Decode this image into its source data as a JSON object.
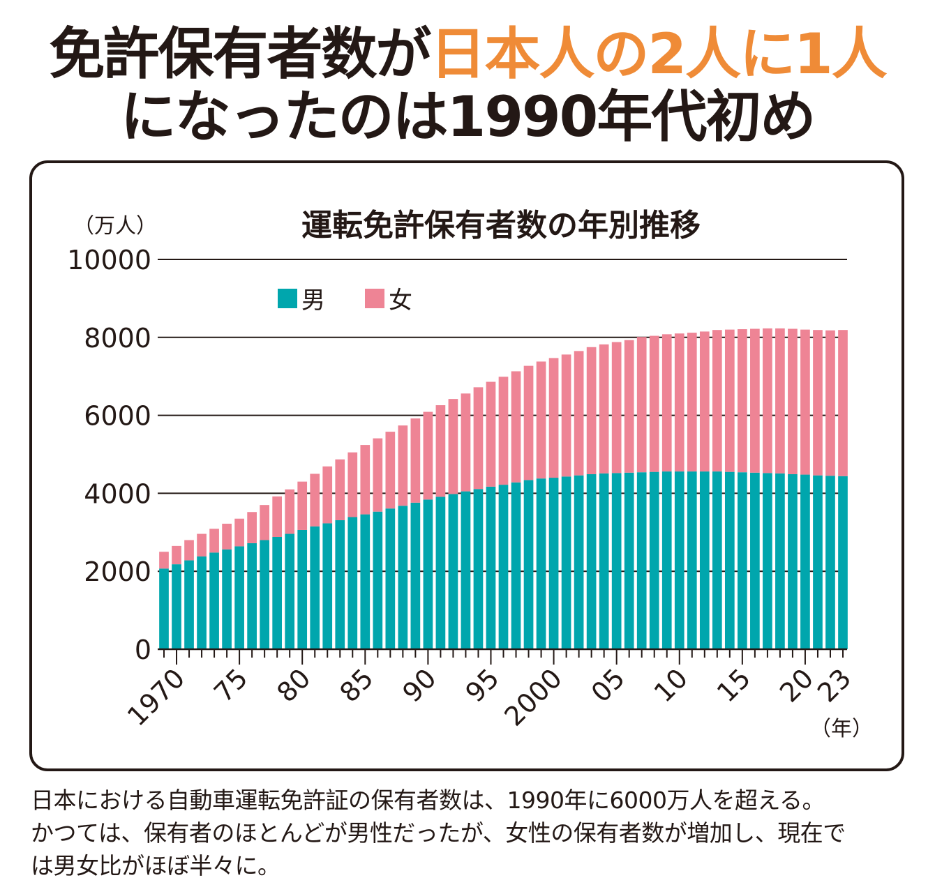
{
  "headline": {
    "line1_plain": "免許保有者数が",
    "line1_accent": "日本人の2人に1人",
    "line2": "になったのは1990年代初め",
    "accent_color": "#ef8b37"
  },
  "caption": {
    "lines": [
      "日本における自動車運転免許証の保有者数は、1990年に6000万人を超える。",
      "かつては、保有者のほとんどが男性だったが、女性の保有者数が増加し、現在で",
      "は男女比がほぼ半々に。"
    ]
  },
  "chart_data": {
    "type": "bar",
    "stacked": true,
    "title": "運転免許保有者数の年別推移",
    "ylabel": "（万人）",
    "xlabel": "（年）",
    "ylim": [
      0,
      10000
    ],
    "yticks": [
      0,
      2000,
      4000,
      6000,
      8000,
      10000
    ],
    "ytick_labels": [
      "0",
      "2000",
      "4000",
      "6000",
      "8000",
      "10000"
    ],
    "grid": true,
    "legend_position": "top-left",
    "x": [
      1969,
      1970,
      1971,
      1972,
      1973,
      1974,
      1975,
      1976,
      1977,
      1978,
      1979,
      1980,
      1981,
      1982,
      1983,
      1984,
      1985,
      1986,
      1987,
      1988,
      1989,
      1990,
      1991,
      1992,
      1993,
      1994,
      1995,
      1996,
      1997,
      1998,
      1999,
      2000,
      2001,
      2002,
      2003,
      2004,
      2005,
      2006,
      2007,
      2008,
      2009,
      2010,
      2011,
      2012,
      2013,
      2014,
      2015,
      2016,
      2017,
      2018,
      2019,
      2020,
      2021,
      2022,
      2023
    ],
    "xtick_labels": [
      {
        "year": 1970,
        "label": "1970"
      },
      {
        "year": 1975,
        "label": "75"
      },
      {
        "year": 1980,
        "label": "80"
      },
      {
        "year": 1985,
        "label": "85"
      },
      {
        "year": 1990,
        "label": "90"
      },
      {
        "year": 1995,
        "label": "95"
      },
      {
        "year": 2000,
        "label": "2000"
      },
      {
        "year": 2005,
        "label": "05"
      },
      {
        "year": 2010,
        "label": "10"
      },
      {
        "year": 2015,
        "label": "15"
      },
      {
        "year": 2020,
        "label": "20"
      },
      {
        "year": 2023,
        "label": "23"
      }
    ],
    "series": [
      {
        "name": "男",
        "color": "#00a6ad",
        "values": [
          2070,
          2180,
          2280,
          2380,
          2480,
          2560,
          2640,
          2720,
          2800,
          2880,
          2960,
          3060,
          3150,
          3230,
          3310,
          3390,
          3460,
          3530,
          3610,
          3680,
          3760,
          3840,
          3910,
          3980,
          4050,
          4110,
          4170,
          4220,
          4280,
          4340,
          4380,
          4400,
          4430,
          4460,
          4490,
          4510,
          4520,
          4530,
          4540,
          4550,
          4560,
          4560,
          4560,
          4560,
          4560,
          4550,
          4540,
          4530,
          4520,
          4510,
          4490,
          4480,
          4460,
          4450,
          4440
        ]
      },
      {
        "name": "女",
        "color": "#ee8495",
        "values": [
          430,
          470,
          520,
          580,
          610,
          660,
          710,
          800,
          900,
          1040,
          1140,
          1240,
          1350,
          1460,
          1560,
          1660,
          1780,
          1880,
          1970,
          2060,
          2160,
          2250,
          2350,
          2440,
          2510,
          2610,
          2690,
          2770,
          2850,
          2930,
          3000,
          3070,
          3130,
          3190,
          3260,
          3310,
          3360,
          3400,
          3470,
          3490,
          3520,
          3540,
          3560,
          3590,
          3630,
          3650,
          3670,
          3690,
          3710,
          3720,
          3730,
          3720,
          3730,
          3730,
          3750
        ]
      }
    ]
  }
}
